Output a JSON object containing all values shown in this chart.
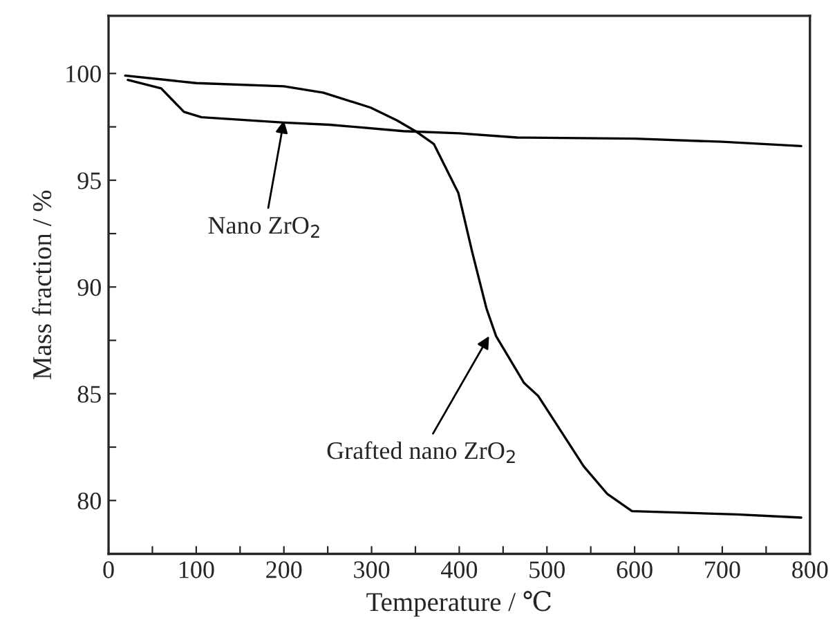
{
  "chart_data": {
    "type": "line",
    "xlabel": "Temperature / ℃",
    "ylabel": "Mass fraction / %",
    "xlim": [
      0,
      800
    ],
    "ylim": [
      77.5,
      102.7
    ],
    "xticks": [
      0,
      {
        "value": 50,
        "label": null
      },
      100,
      {
        "value": 150,
        "label": null
      },
      200,
      {
        "value": 250,
        "label": null
      },
      300,
      {
        "value": 350,
        "label": null
      },
      400,
      {
        "value": 450,
        "label": null
      },
      500,
      {
        "value": 550,
        "label": null
      },
      600,
      {
        "value": 650,
        "label": null
      },
      700,
      {
        "value": 750,
        "label": null
      },
      800
    ],
    "yticks": [
      80,
      {
        "value": 82.5,
        "label": null
      },
      85,
      {
        "value": 87.5,
        "label": null
      },
      90,
      {
        "value": 92.5,
        "label": null
      },
      95,
      {
        "value": 97.5,
        "label": null
      },
      100
    ],
    "grid": false,
    "legend": false,
    "marker": "none",
    "line_style": "solid",
    "series": [
      {
        "color": "#000000",
        "x": [
          22,
          60,
          86,
          106,
          200,
          252,
          336,
          400,
          466,
          600,
          700,
          790
        ],
        "values": [
          99.7,
          99.3,
          98.2,
          97.95,
          97.7,
          97.6,
          97.3,
          97.2,
          97.0,
          96.95,
          96.8,
          96.6
        ]
      },
      {
        "color": "#000000",
        "x": [
          19,
          100,
          200,
          245,
          299,
          329,
          350,
          371,
          399,
          415,
          431,
          442,
          474,
          490,
          542,
          569,
          597,
          716,
          790
        ],
        "values": [
          99.9,
          99.55,
          99.4,
          99.1,
          98.4,
          97.8,
          97.3,
          96.7,
          94.4,
          91.6,
          89.0,
          87.7,
          85.5,
          84.9,
          81.6,
          80.3,
          79.5,
          79.35,
          79.2
        ]
      }
    ],
    "annotations": [
      {
        "text": "Nano ZrO$_{2}$",
        "x": 200,
        "y": 97.8
      },
      {
        "text": "Grafted nano ZrO$_{2}$",
        "x": 434,
        "y": 87.7
      }
    ]
  }
}
